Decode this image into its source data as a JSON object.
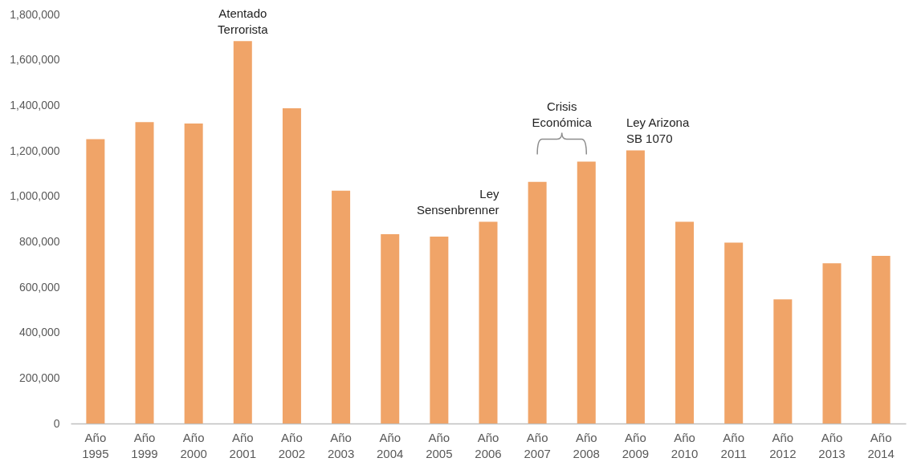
{
  "chart_data": {
    "type": "bar",
    "categories": [
      "Año 1995",
      "Año 1999",
      "Año 2000",
      "Año 2001",
      "Año 2002",
      "Año 2003",
      "Año 2004",
      "Año 2005",
      "Año 2006",
      "Año 2007",
      "Año 2008",
      "Año 2009",
      "Año 2010",
      "Año 2011",
      "Año 2012",
      "Año 2013",
      "Año 2014"
    ],
    "values": [
      1251000,
      1326000,
      1320000,
      1683000,
      1387000,
      1024000,
      833000,
      822000,
      888000,
      1063000,
      1152000,
      1202000,
      888000,
      796000,
      546000,
      705000,
      738000
    ],
    "color": "#f0a468",
    "ylim": [
      0,
      1800000
    ],
    "yticks": [
      {
        "value": 0,
        "label": "0"
      },
      {
        "value": 200000,
        "label": "200,000"
      },
      {
        "value": 400000,
        "label": "400,000"
      },
      {
        "value": 600000,
        "label": "600,000"
      },
      {
        "value": 800000,
        "label": "800,000"
      },
      {
        "value": 1000000,
        "label": "1,000,000"
      },
      {
        "value": 1200000,
        "label": "1,200,000"
      },
      {
        "value": 1400000,
        "label": "1,400,000"
      },
      {
        "value": 1600000,
        "label": "1,600,000"
      },
      {
        "value": 1800000,
        "label": "1,800,000"
      }
    ],
    "grid": false,
    "annotations": [
      {
        "text": "Atentado\nTerrorista",
        "x": "Año 2001",
        "y": 1683000
      },
      {
        "text": "Ley\nSensenbrenner",
        "x": "Año 2006",
        "y": 888000
      },
      {
        "text": "Crisis\nEconómica",
        "x": "Año 2008",
        "y": 1152000
      },
      {
        "text": "Ley Arizona\nSB 1070",
        "x": "Año 2009",
        "y": 1202000
      }
    ]
  }
}
